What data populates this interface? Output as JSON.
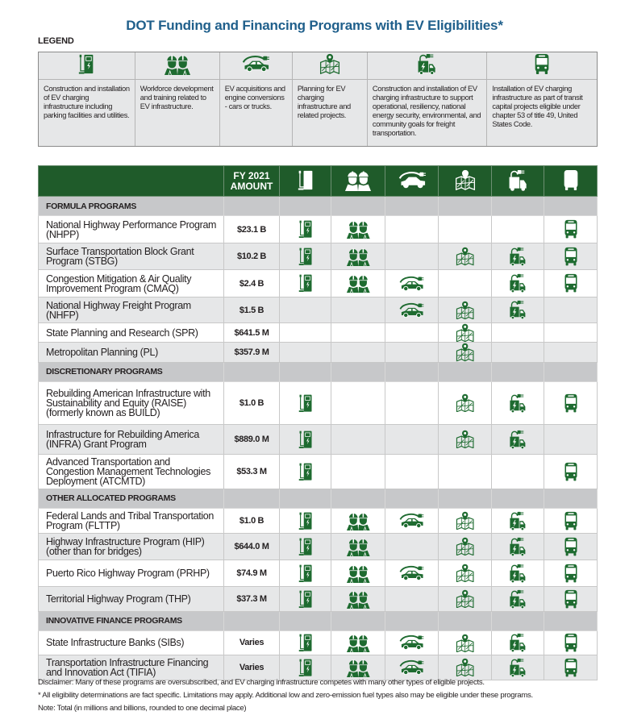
{
  "title": "DOT Funding and Financing Programs with EV Eligibilities*",
  "legend": {
    "label": "LEGEND",
    "items": [
      {
        "icon": "ev-charger-icon",
        "text": "Construction and installation of EV charging infrastructure including parking facilities and utilities."
      },
      {
        "icon": "workforce-icon",
        "text": "Workforce development and training related to EV infrastructure."
      },
      {
        "icon": "ev-car-icon",
        "text": "EV acquisitions and engine conversions - cars or trucks."
      },
      {
        "icon": "planning-map-icon",
        "text": "Planning for EV charging infrastructure and related projects."
      },
      {
        "icon": "freight-truck-icon",
        "text": "Construction and installation of EV charging infrastructure to support operational, resiliency, national energy security, environmental, and community goals for freight transportation."
      },
      {
        "icon": "transit-bus-icon",
        "text": "Installation of EV charging infrastructure as part of transit capital projects eligible under chapter 53 of title 49, United States Code."
      }
    ]
  },
  "colors": {
    "brand_green": "#1f5b2a",
    "icon_green": "#1e6b30",
    "title_blue": "#1f5f8b",
    "section_gray": "#c7c8ca",
    "alt_row_gray": "#e6e7e8"
  },
  "table": {
    "amount_header_line1": "FY 2021",
    "amount_header_line2": "AMOUNT",
    "column_icons": [
      "ev-charger-icon",
      "workforce-icon",
      "ev-car-icon",
      "planning-map-icon",
      "freight-truck-icon",
      "transit-bus-icon"
    ],
    "sections": [
      {
        "title": "FORMULA PROGRAMS",
        "rows": [
          {
            "program": "National Highway Performance Program (NHPP)",
            "amount": "$23.1 B",
            "eligible": [
              true,
              true,
              false,
              false,
              false,
              true
            ]
          },
          {
            "program": "Surface Transportation Block Grant Program (STBG)",
            "amount": "$10.2 B",
            "eligible": [
              true,
              true,
              false,
              true,
              true,
              true
            ]
          },
          {
            "program": "Congestion Mitigation & Air Quality Improvement Program (CMAQ)",
            "amount": "$2.4 B",
            "eligible": [
              true,
              true,
              true,
              false,
              true,
              true
            ]
          },
          {
            "program": "National Highway Freight Program (NHFP)",
            "amount": "$1.5 B",
            "eligible": [
              false,
              false,
              true,
              true,
              true,
              false
            ]
          },
          {
            "program": "State Planning and Research (SPR)",
            "amount": "$641.5 M",
            "eligible": [
              false,
              false,
              false,
              true,
              false,
              false
            ]
          },
          {
            "program": "Metropolitan Planning (PL)",
            "amount": "$357.9 M",
            "eligible": [
              false,
              false,
              false,
              true,
              false,
              false
            ]
          }
        ]
      },
      {
        "title": "DISCRETIONARY PROGRAMS",
        "rows": [
          {
            "program": "Rebuilding American Infrastructure with Sustainability and Equity (RAISE) (formerly known as BUILD)",
            "amount": "$1.0 B",
            "eligible": [
              true,
              false,
              false,
              true,
              true,
              true
            ]
          },
          {
            "program": "Infrastructure for Rebuilding America (INFRA) Grant Program",
            "amount": "$889.0 M",
            "eligible": [
              true,
              false,
              false,
              true,
              true,
              false
            ]
          },
          {
            "program": "Advanced Transportation and Congestion Management Technologies Deployment (ATCMTD)",
            "amount": "$53.3 M",
            "eligible": [
              true,
              false,
              false,
              false,
              false,
              true
            ]
          }
        ]
      },
      {
        "title": "OTHER ALLOCATED PROGRAMS",
        "rows": [
          {
            "program": "Federal Lands and Tribal Transportation Program (FLTTP)",
            "amount": "$1.0 B",
            "eligible": [
              true,
              true,
              true,
              true,
              true,
              true
            ]
          },
          {
            "program": "Highway Infrastructure Program (HIP) (other than for bridges)",
            "amount": "$644.0 M",
            "eligible": [
              true,
              true,
              false,
              true,
              true,
              true
            ]
          },
          {
            "program": "Puerto Rico Highway Program (PRHP)",
            "amount": "$74.9 M",
            "eligible": [
              true,
              true,
              true,
              true,
              true,
              true
            ]
          },
          {
            "program": "Territorial Highway Program (THP)",
            "amount": "$37.3 M",
            "eligible": [
              true,
              true,
              false,
              true,
              true,
              true
            ]
          }
        ]
      },
      {
        "title": "INNOVATIVE FINANCE PROGRAMS",
        "rows": [
          {
            "program": "State Infrastructure Banks (SIBs)",
            "amount": "Varies",
            "eligible": [
              true,
              true,
              true,
              true,
              true,
              true
            ]
          },
          {
            "program": "Transportation Infrastructure Financing and Innovation Act (TIFIA)",
            "amount": "Varies",
            "eligible": [
              true,
              true,
              true,
              true,
              true,
              true
            ]
          }
        ]
      }
    ]
  },
  "notes": {
    "disclaimer": "Disclaimer: Many of these programs are oversubscribed, and EV charging infrastructure competes with many other types of eligible projects.",
    "asterisk": "* All eligibility determinations are fact specific.  Limitations may apply.  Additional low and zero-emission fuel types also may be eligible under these programs.",
    "note": "Note: Total (in millions and billions, rounded to one decimal place)"
  }
}
